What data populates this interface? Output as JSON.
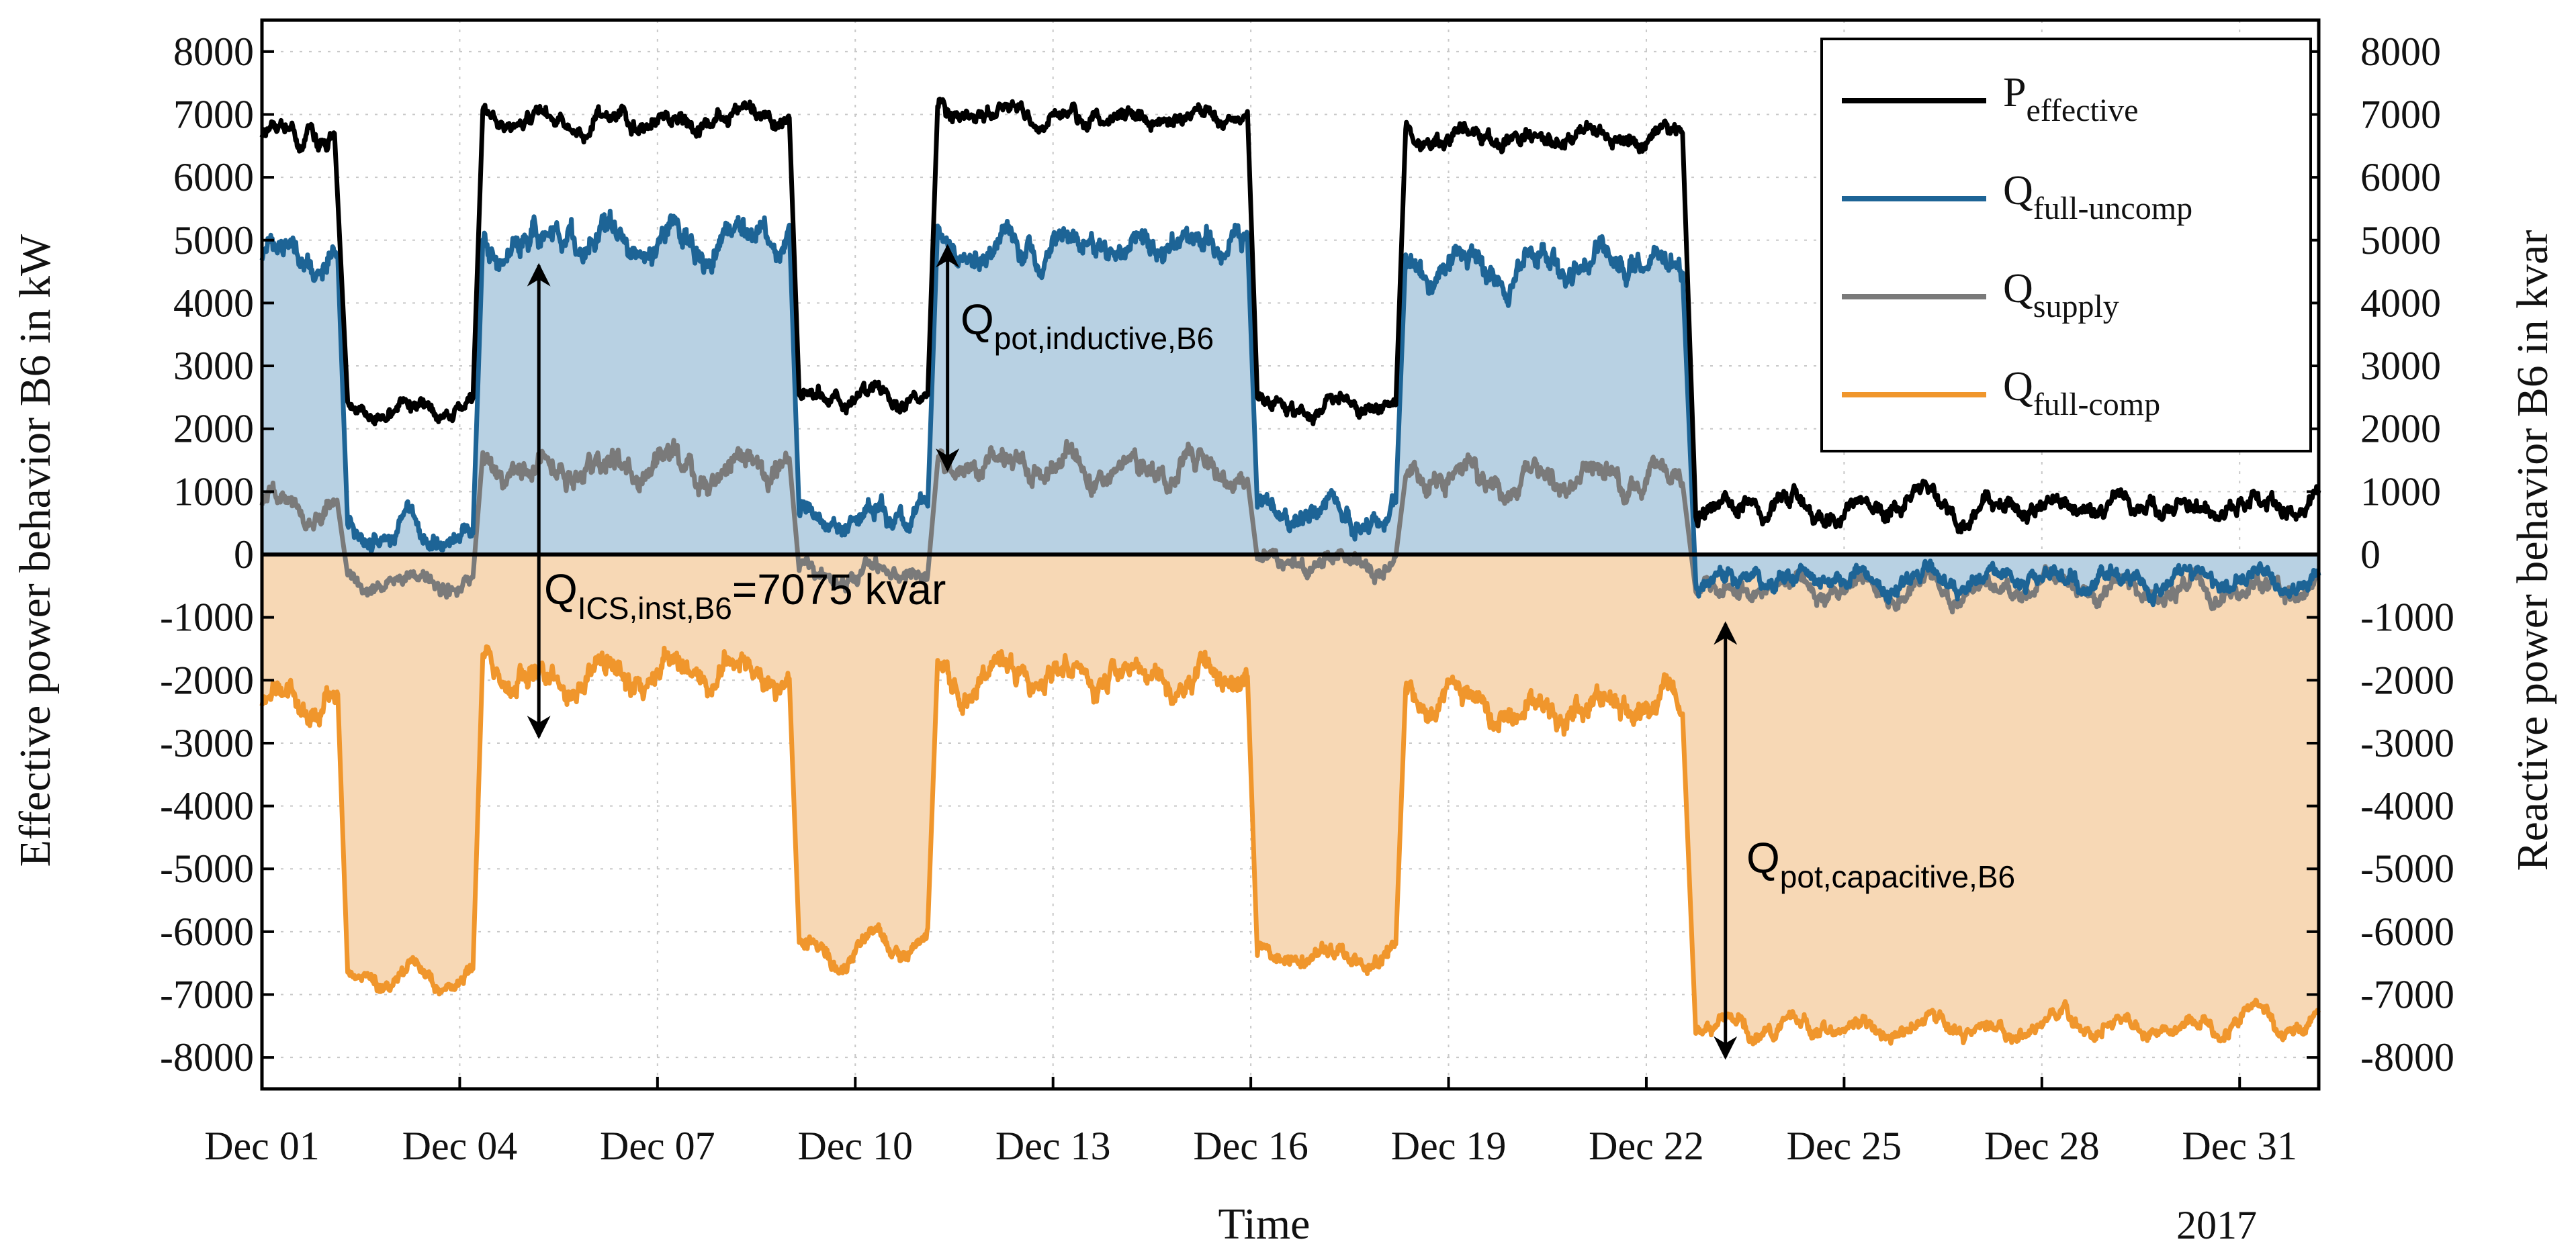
{
  "chart_data": {
    "type": "area",
    "xlabel": "Time",
    "ylabel_left": "Effective power behavior B6 in kW",
    "ylabel_right": "Reactive power behavior B6 in kvar",
    "year_label": "2017",
    "x_range_days": [
      0,
      31.2
    ],
    "ylim": [
      -8500,
      8500
    ],
    "ytick_values": [
      8000,
      7000,
      6000,
      5000,
      4000,
      3000,
      2000,
      1000,
      0,
      -1000,
      -2000,
      -3000,
      -4000,
      -5000,
      -6000,
      -7000,
      -8000
    ],
    "ytick_labels": [
      "8000",
      "7000",
      "6000",
      "5000",
      "4000",
      "3000",
      "2000",
      "1000",
      "0",
      "-1000",
      "-2000",
      "-3000",
      "-4000",
      "-5000",
      "-6000",
      "-7000",
      "-8000"
    ],
    "xtick_labels": [
      "Dec 01",
      "Dec 04",
      "Dec 07",
      "Dec 10",
      "Dec 13",
      "Dec 16",
      "Dec 19",
      "Dec 22",
      "Dec 25",
      "Dec 28",
      "Dec 31"
    ],
    "grid": true,
    "legend_position": "top-right",
    "series": [
      {
        "name_main": "P",
        "name_sub": "effective",
        "color": "#000000",
        "segments": [
          {
            "from": 0.0,
            "to": 1.1,
            "level": 6700,
            "noise": 230
          },
          {
            "from": 1.3,
            "to": 3.2,
            "level": 2300,
            "noise": 180
          },
          {
            "from": 3.35,
            "to": 8.0,
            "level": 6950,
            "noise": 200
          },
          {
            "from": 8.15,
            "to": 10.1,
            "level": 2500,
            "noise": 200
          },
          {
            "from": 10.25,
            "to": 14.95,
            "level": 6950,
            "noise": 200
          },
          {
            "from": 15.1,
            "to": 17.2,
            "level": 2350,
            "noise": 200
          },
          {
            "from": 17.35,
            "to": 21.55,
            "level": 6650,
            "noise": 220
          },
          {
            "from": 21.75,
            "to": 31.2,
            "level": 750,
            "noise": 230
          }
        ]
      },
      {
        "name_main": "Q",
        "name_sub": "full-uncomp",
        "color": "#1d6496",
        "segments": [
          {
            "from": 0.0,
            "to": 1.15,
            "level": 4800,
            "noise": 300
          },
          {
            "from": 1.3,
            "to": 3.2,
            "level": 300,
            "noise": 250
          },
          {
            "from": 3.35,
            "to": 8.0,
            "level": 4950,
            "noise": 350
          },
          {
            "from": 8.15,
            "to": 10.1,
            "level": 550,
            "noise": 280
          },
          {
            "from": 10.25,
            "to": 14.95,
            "level": 4900,
            "noise": 320
          },
          {
            "from": 15.1,
            "to": 17.2,
            "level": 700,
            "noise": 280
          },
          {
            "from": 17.35,
            "to": 21.55,
            "level": 4600,
            "noise": 320
          },
          {
            "from": 21.75,
            "to": 31.2,
            "level": -400,
            "noise": 220
          }
        ]
      },
      {
        "name_main": "Q",
        "name_sub": "supply",
        "color": "#7a7a7a",
        "segments": [
          {
            "from": 0.0,
            "to": 1.15,
            "level": 800,
            "noise": 250
          },
          {
            "from": 1.3,
            "to": 3.2,
            "level": -450,
            "noise": 200
          },
          {
            "from": 3.35,
            "to": 8.0,
            "level": 1350,
            "noise": 330
          },
          {
            "from": 8.15,
            "to": 10.1,
            "level": -300,
            "noise": 220
          },
          {
            "from": 10.25,
            "to": 14.95,
            "level": 1350,
            "noise": 300
          },
          {
            "from": 15.1,
            "to": 17.2,
            "level": -150,
            "noise": 220
          },
          {
            "from": 17.35,
            "to": 21.55,
            "level": 1200,
            "noise": 300
          },
          {
            "from": 21.75,
            "to": 31.2,
            "level": -550,
            "noise": 220
          }
        ]
      },
      {
        "name_main": "Q",
        "name_sub": "full-comp",
        "color": "#f0962c",
        "segments": [
          {
            "from": 0.0,
            "to": 1.15,
            "level": -2350,
            "noise": 300
          },
          {
            "from": 1.3,
            "to": 3.2,
            "level": -6750,
            "noise": 200
          },
          {
            "from": 3.35,
            "to": 8.0,
            "level": -1900,
            "noise": 350
          },
          {
            "from": 8.15,
            "to": 10.1,
            "level": -6300,
            "noise": 250
          },
          {
            "from": 10.25,
            "to": 14.95,
            "level": -1950,
            "noise": 330
          },
          {
            "from": 15.1,
            "to": 17.2,
            "level": -6400,
            "noise": 230
          },
          {
            "from": 17.35,
            "to": 21.55,
            "level": -2400,
            "noise": 320
          },
          {
            "from": 21.75,
            "to": 31.2,
            "level": -7500,
            "noise": 200
          }
        ]
      }
    ],
    "fills": [
      {
        "between": [
          "Q full-uncomp",
          "0"
        ],
        "color": "#b8d1e3"
      },
      {
        "between": [
          "Q full-comp",
          "0"
        ],
        "color": "#f7d8b5"
      }
    ],
    "annotations": [
      {
        "main": "Q",
        "sub": "pot,inductive,B6",
        "suffix": "",
        "arrow_x": 10.4,
        "from": 4900,
        "to": 1350
      },
      {
        "main": "Q",
        "sub": "ICS,inst,B6",
        "suffix": "=7075 kvar",
        "arrow_x": 4.2,
        "from": 4600,
        "to": -2900
      },
      {
        "main": "Q",
        "sub": "pot,capacitive,B6",
        "suffix": "",
        "arrow_x": 22.2,
        "from": -1100,
        "to": -8000
      }
    ]
  }
}
